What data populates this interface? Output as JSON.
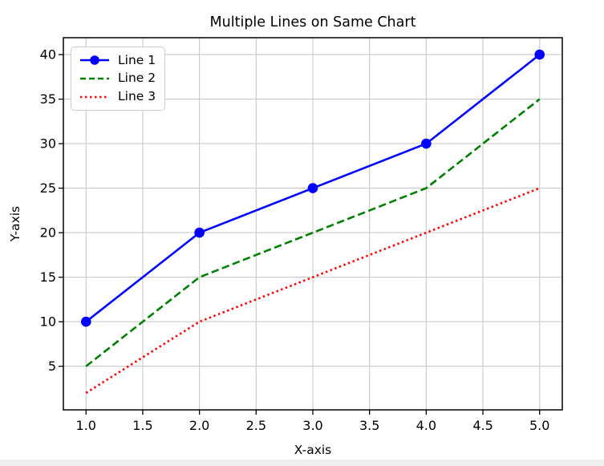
{
  "chart_data": {
    "type": "line",
    "title": "Multiple Lines on Same Chart",
    "xlabel": "X-axis",
    "ylabel": "Y-axis",
    "x": [
      1,
      2,
      3,
      4,
      5
    ],
    "series": [
      {
        "name": "Line 1",
        "values": [
          10,
          20,
          25,
          30,
          40
        ],
        "color": "#0000ff",
        "style": "solid",
        "marker": "o"
      },
      {
        "name": "Line 2",
        "values": [
          5,
          15,
          20,
          25,
          35
        ],
        "color": "#008000",
        "style": "dashed",
        "marker": "none"
      },
      {
        "name": "Line 3",
        "values": [
          2,
          10,
          15,
          20,
          25
        ],
        "color": "#ff0000",
        "style": "dotted",
        "marker": "none"
      }
    ],
    "xlim": [
      0.8,
      5.2
    ],
    "ylim": [
      0.1,
      41.9
    ],
    "xticks": [
      1.0,
      1.5,
      2.0,
      2.5,
      3.0,
      3.5,
      4.0,
      4.5,
      5.0
    ],
    "xtick_labels": [
      "1.0",
      "1.5",
      "2.0",
      "2.5",
      "3.0",
      "3.5",
      "4.0",
      "4.5",
      "5.0"
    ],
    "yticks": [
      5,
      10,
      15,
      20,
      25,
      30,
      35,
      40
    ],
    "ytick_labels": [
      "5",
      "10",
      "15",
      "20",
      "25",
      "30",
      "35",
      "40"
    ],
    "grid": true,
    "legend_position": "upper left",
    "grid_color": "#c9c9c9",
    "spine_color": "#000000",
    "text_color": "#000000",
    "background_color": "#ffffff",
    "window_strip_color": "#efefef"
  }
}
